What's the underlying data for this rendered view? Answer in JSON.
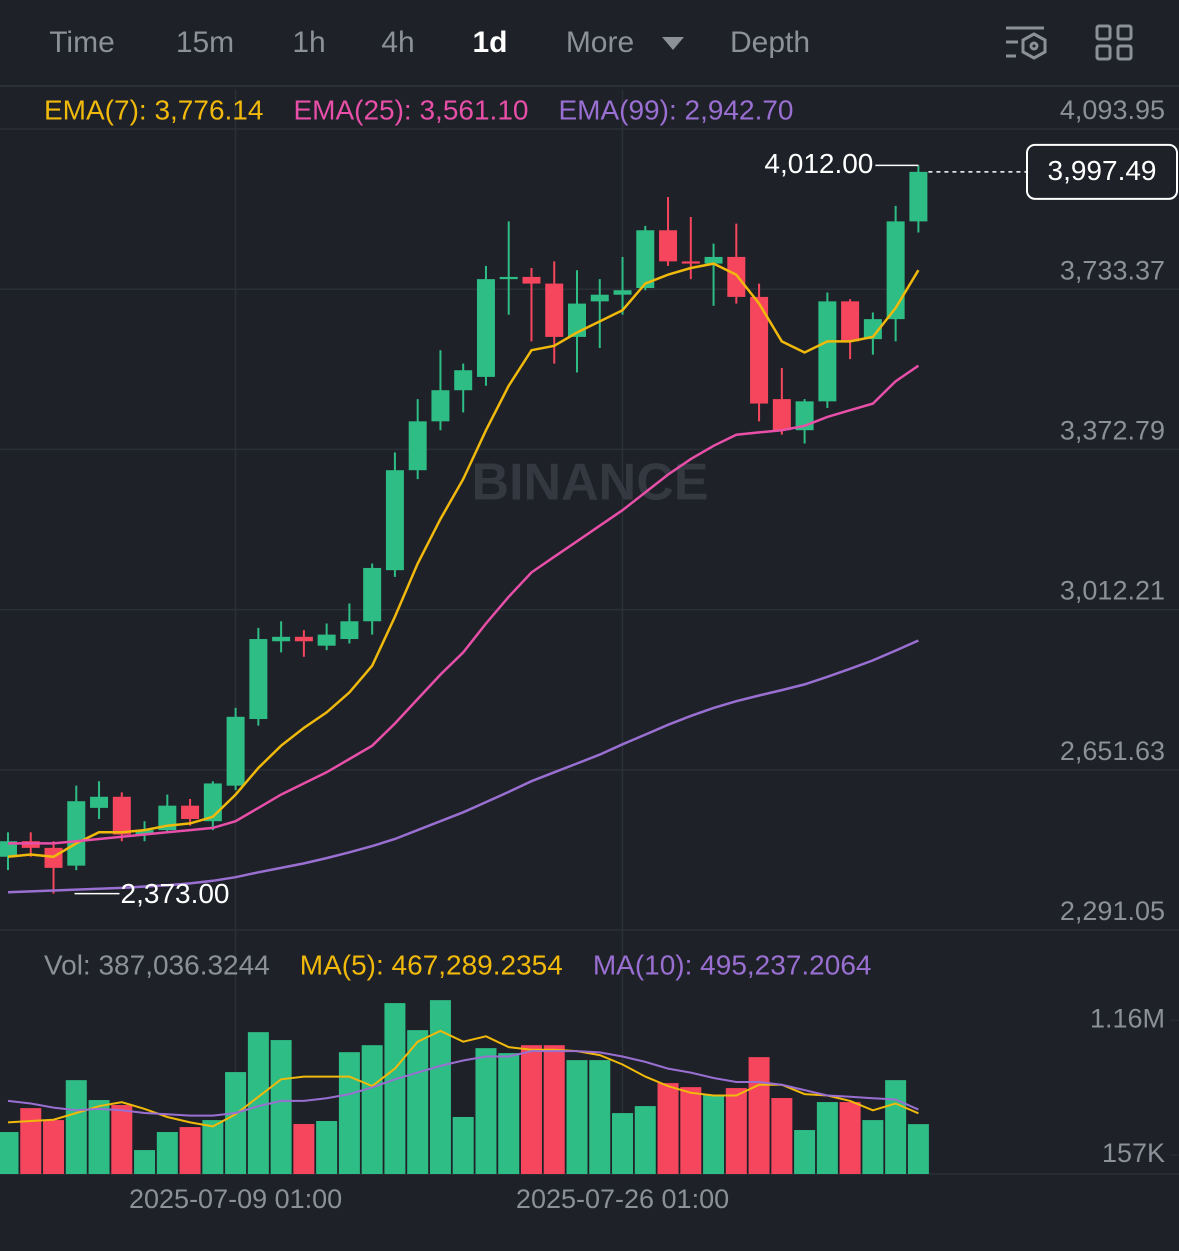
{
  "toolbar": {
    "tabs": [
      "Time",
      "15m",
      "1h",
      "4h",
      "1d",
      "More",
      "Depth"
    ],
    "active": 4
  },
  "chart_data": [
    {
      "type": "candlestick",
      "watermark": "BINANCE",
      "categories": [
        null,
        null,
        null,
        null,
        null,
        null,
        null,
        null,
        null,
        null,
        "2025-07-09 01:00",
        null,
        null,
        null,
        null,
        null,
        null,
        null,
        null,
        null,
        null,
        null,
        null,
        null,
        null,
        null,
        null,
        "2025-07-26 01:00",
        null,
        null,
        null,
        null,
        null,
        null,
        null,
        null,
        null,
        null,
        null,
        null,
        null
      ],
      "open": [
        2456,
        2491,
        2476,
        2436,
        2566,
        2591,
        2506,
        2516,
        2571,
        2536,
        2616,
        2766,
        2941,
        2951,
        2931,
        2946,
        2986,
        3101,
        3326,
        3436,
        3506,
        3536,
        3756,
        3761,
        3746,
        3626,
        3706,
        3721,
        3736,
        3866,
        3796,
        3791,
        3806,
        3716,
        3486,
        3416,
        3481,
        3706,
        3621,
        3666,
        3886
      ],
      "high": [
        2511,
        2511,
        2491,
        2616,
        2626,
        2601,
        2536,
        2596,
        2586,
        2626,
        2791,
        2971,
        2986,
        2966,
        2981,
        3026,
        3116,
        3366,
        3486,
        3596,
        3566,
        3786,
        3886,
        3781,
        3796,
        3776,
        3756,
        3806,
        3876,
        3941,
        3896,
        3836,
        3881,
        3746,
        3556,
        3486,
        3726,
        3711,
        3681,
        3921,
        4012
      ],
      "low": [
        2426,
        2456,
        2373,
        2426,
        2541,
        2491,
        2491,
        2511,
        2526,
        2516,
        2606,
        2751,
        2916,
        2906,
        2921,
        2936,
        2956,
        3086,
        3306,
        3416,
        3456,
        3516,
        3676,
        3616,
        3566,
        3546,
        3601,
        3676,
        3731,
        3786,
        3756,
        3696,
        3701,
        3436,
        3406,
        3386,
        3466,
        3576,
        3586,
        3616,
        3861
      ],
      "close": [
        2491,
        2476,
        2431,
        2581,
        2591,
        2506,
        2516,
        2571,
        2541,
        2621,
        2771,
        2946,
        2951,
        2941,
        2956,
        2986,
        3106,
        3326,
        3436,
        3506,
        3551,
        3756,
        3761,
        3746,
        3626,
        3701,
        3721,
        3731,
        3866,
        3796,
        3791,
        3806,
        3716,
        3476,
        3416,
        3481,
        3706,
        3616,
        3666,
        3886,
        3997.49
      ],
      "up_color": "#2ebd85",
      "down_color": "#f6465d",
      "series": [
        {
          "name": "EMA(7): 3,776.14",
          "color": "#f0b90b",
          "values": [
            2456,
            2461,
            2456,
            2486,
            2511,
            2511,
            2516,
            2526,
            2531,
            2546,
            2596,
            2656,
            2706,
            2746,
            2781,
            2826,
            2886,
            2996,
            3116,
            3216,
            3306,
            3416,
            3516,
            3596,
            3606,
            3636,
            3661,
            3686,
            3746,
            3766,
            3781,
            3791,
            3766,
            3701,
            3616,
            3591,
            3616,
            3616,
            3626,
            3691,
            3776.14
          ]
        },
        {
          "name": "EMA(25): 3,561.10",
          "color": "#e74fa8",
          "values": [
            2486,
            2486,
            2486,
            2491,
            2496,
            2501,
            2506,
            2511,
            2516,
            2521,
            2536,
            2566,
            2596,
            2621,
            2646,
            2676,
            2706,
            2756,
            2811,
            2866,
            2916,
            2981,
            3041,
            3096,
            3131,
            3166,
            3201,
            3236,
            3276,
            3316,
            3351,
            3381,
            3406,
            3411,
            3416,
            3426,
            3446,
            3461,
            3476,
            3526,
            3561.1
          ]
        },
        {
          "name": "EMA(99): 2,942.70",
          "color": "#9a6fd2",
          "values": [
            2376,
            2378,
            2380,
            2382,
            2384,
            2386,
            2389,
            2392,
            2396,
            2402,
            2410,
            2421,
            2431,
            2441,
            2453,
            2466,
            2480,
            2496,
            2516,
            2536,
            2556,
            2579,
            2602,
            2626,
            2646,
            2666,
            2686,
            2709,
            2731,
            2753,
            2773,
            2791,
            2806,
            2819,
            2831,
            2844,
            2861,
            2879,
            2898,
            2920,
            2942.7
          ]
        }
      ],
      "ylim": [
        2257.4,
        4181.7
      ],
      "yticks": [
        {
          "value": 4093.95,
          "label": "4,093.95"
        },
        {
          "value": 3733.37,
          "label": "3,733.37"
        },
        {
          "value": 3372.79,
          "label": "3,372.79"
        },
        {
          "value": 3012.21,
          "label": "3,012.21"
        },
        {
          "value": 2651.63,
          "label": "2,651.63"
        },
        {
          "value": 2291.05,
          "label": "2,291.05"
        }
      ],
      "annotations": {
        "max": {
          "value": 4012,
          "label": "4,012.00"
        },
        "min": {
          "value": 2373,
          "label": "2,373.00"
        },
        "last": {
          "value": 3997.49,
          "label": "3,997.49"
        }
      },
      "grid": true
    },
    {
      "type": "volume",
      "series": [
        {
          "name": "Vol: 387,036.3244",
          "color": "#8b9099",
          "values": [
            328000,
            506000,
            417000,
            714000,
            566000,
            529000,
            194000,
            328000,
            365000,
            417000,
            774000,
            1071000,
            1012000,
            388000,
            410000,
            922000,
            974000,
            1287000,
            1086000,
            1309000,
            440000,
            952000,
            915000,
            974000,
            974000,
            863000,
            863000,
            469000,
            521000,
            692000,
            662000,
            603000,
            655000,
            885000,
            581000,
            343000,
            551000,
            551000,
            417000,
            714000,
            387036.3244
          ]
        },
        {
          "name": "MA(5): 467,289.2354",
          "color": "#f0b90b",
          "values": [
            400000,
            410000,
            420000,
            470000,
            520000,
            550000,
            500000,
            440000,
            400000,
            370000,
            460000,
            590000,
            720000,
            740000,
            740000,
            740000,
            670000,
            800000,
            1000000,
            1080000,
            1000000,
            1040000,
            960000,
            940000,
            940000,
            930000,
            900000,
            830000,
            740000,
            670000,
            620000,
            600000,
            600000,
            680000,
            680000,
            610000,
            600000,
            560000,
            490000,
            540000,
            467289.2354
          ]
        },
        {
          "name": "MA(10): 495,237.2064",
          "color": "#9a6fd2",
          "values": [
            560000,
            540000,
            510000,
            490000,
            500000,
            490000,
            470000,
            460000,
            450000,
            450000,
            470000,
            520000,
            560000,
            560000,
            580000,
            610000,
            660000,
            720000,
            770000,
            820000,
            860000,
            890000,
            890000,
            930000,
            930000,
            930000,
            920000,
            890000,
            850000,
            800000,
            770000,
            730000,
            700000,
            700000,
            680000,
            640000,
            600000,
            590000,
            580000,
            570000,
            495237.2064
          ]
        }
      ],
      "ylim": [
        16000,
        1310000
      ],
      "yticks": [
        {
          "value": 1160000,
          "label": "1.16M"
        },
        {
          "value": 157000,
          "label": "157K"
        }
      ]
    }
  ]
}
